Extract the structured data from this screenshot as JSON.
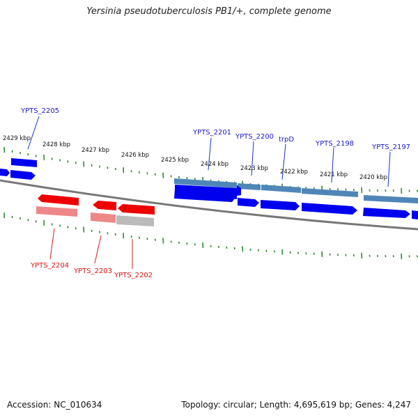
{
  "title": "Yersinia pseudotuberculosis PB1/+, complete genome",
  "footer": {
    "accession": "Accession: NC_010634",
    "stats": "Topology: circular; Length: 4,695,619 bp; Genes: 4,247"
  },
  "colors": {
    "forward_gene": "#0000ee",
    "forward_feature": "#4f86b8",
    "reverse_gene": "#ee0000",
    "reverse_feature": "#ee8080",
    "pseudo_feature": "#b8b8b8",
    "backbone": "#777777",
    "ticks": "#2e8b2e"
  },
  "kbp_labels": [
    "2429 kbp",
    "2428 kbp",
    "2427 kbp",
    "2426 kbp",
    "2425 kbp",
    "2424 kbp",
    "2423 kbp",
    "2422 kbp",
    "2421 kbp",
    "2420 kbp"
  ],
  "forward_labels": [
    "YPTS_2205",
    "YPTS_2201",
    "YPTS_2200",
    "trpD",
    "YPTS_2198",
    "YPTS_2197"
  ],
  "reverse_labels": [
    "YPTS_2204",
    "YPTS_2203",
    "YPTS_2202"
  ]
}
